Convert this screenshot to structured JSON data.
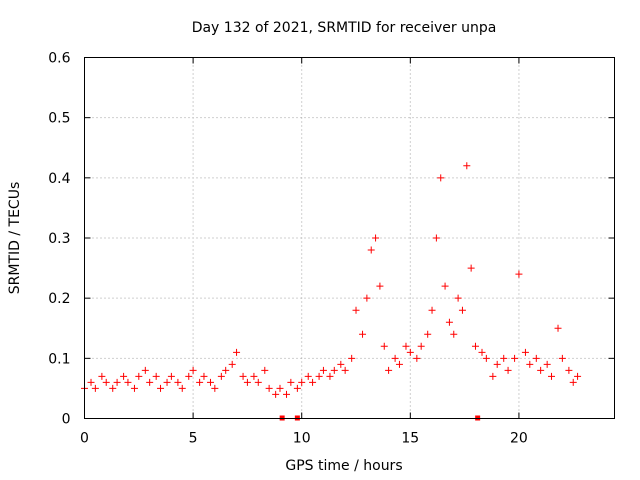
{
  "chart_data": {
    "type": "scatter",
    "title": "Day 132 of 2021, SRMTID for receiver unpa",
    "xlabel": "GPS time / hours",
    "ylabel": "SRMTID / TECUs",
    "xlim": [
      0,
      24.4
    ],
    "ylim": [
      0,
      0.6
    ],
    "xticks": [
      0,
      5,
      10,
      15,
      20
    ],
    "xtick_labels": [
      "0",
      "5",
      "10",
      "15",
      "20"
    ],
    "yticks": [
      0,
      0.1,
      0.2,
      0.3,
      0.4,
      0.5,
      0.6
    ],
    "ytick_labels": [
      "0",
      "0.1",
      "0.2",
      "0.3",
      "0.4",
      "0.5",
      "0.6"
    ],
    "grid": true,
    "marker": "+",
    "color": "#ff0000",
    "data_gap_markers_x": [
      9.1,
      9.8,
      18.1
    ],
    "series": [
      {
        "name": "SRMTID",
        "x": [
          0.0,
          0.3,
          0.5,
          0.8,
          1.0,
          1.3,
          1.5,
          1.8,
          2.0,
          2.3,
          2.5,
          2.8,
          3.0,
          3.3,
          3.5,
          3.8,
          4.0,
          4.3,
          4.5,
          4.8,
          5.0,
          5.3,
          5.5,
          5.8,
          6.0,
          6.3,
          6.5,
          6.8,
          7.0,
          7.3,
          7.5,
          7.8,
          8.0,
          8.3,
          8.5,
          8.8,
          9.0,
          9.3,
          9.5,
          9.8,
          10.0,
          10.3,
          10.5,
          10.8,
          11.0,
          11.3,
          11.5,
          11.8,
          12.0,
          12.3,
          12.5,
          12.8,
          13.0,
          13.2,
          13.4,
          13.6,
          13.8,
          14.0,
          14.3,
          14.5,
          14.8,
          15.0,
          15.3,
          15.5,
          15.8,
          16.0,
          16.2,
          16.4,
          16.6,
          16.8,
          17.0,
          17.2,
          17.4,
          17.6,
          17.8,
          18.0,
          18.3,
          18.5,
          18.8,
          19.0,
          19.3,
          19.5,
          19.8,
          20.0,
          20.3,
          20.5,
          20.8,
          21.0,
          21.3,
          21.5,
          21.8,
          22.0,
          22.3,
          22.5,
          22.7
        ],
        "y": [
          0.05,
          0.06,
          0.05,
          0.07,
          0.06,
          0.05,
          0.06,
          0.07,
          0.06,
          0.05,
          0.07,
          0.08,
          0.06,
          0.07,
          0.05,
          0.06,
          0.07,
          0.06,
          0.05,
          0.07,
          0.08,
          0.06,
          0.07,
          0.06,
          0.05,
          0.07,
          0.08,
          0.09,
          0.11,
          0.07,
          0.06,
          0.07,
          0.06,
          0.08,
          0.05,
          0.04,
          0.05,
          0.04,
          0.06,
          0.05,
          0.06,
          0.07,
          0.06,
          0.07,
          0.08,
          0.07,
          0.08,
          0.09,
          0.08,
          0.1,
          0.18,
          0.14,
          0.2,
          0.28,
          0.3,
          0.22,
          0.12,
          0.08,
          0.1,
          0.09,
          0.12,
          0.11,
          0.1,
          0.12,
          0.14,
          0.18,
          0.3,
          0.4,
          0.22,
          0.16,
          0.14,
          0.2,
          0.18,
          0.42,
          0.25,
          0.12,
          0.11,
          0.1,
          0.07,
          0.09,
          0.1,
          0.08,
          0.1,
          0.24,
          0.11,
          0.09,
          0.1,
          0.08,
          0.09,
          0.07,
          0.15,
          0.1,
          0.08,
          0.06,
          0.07
        ]
      }
    ]
  }
}
